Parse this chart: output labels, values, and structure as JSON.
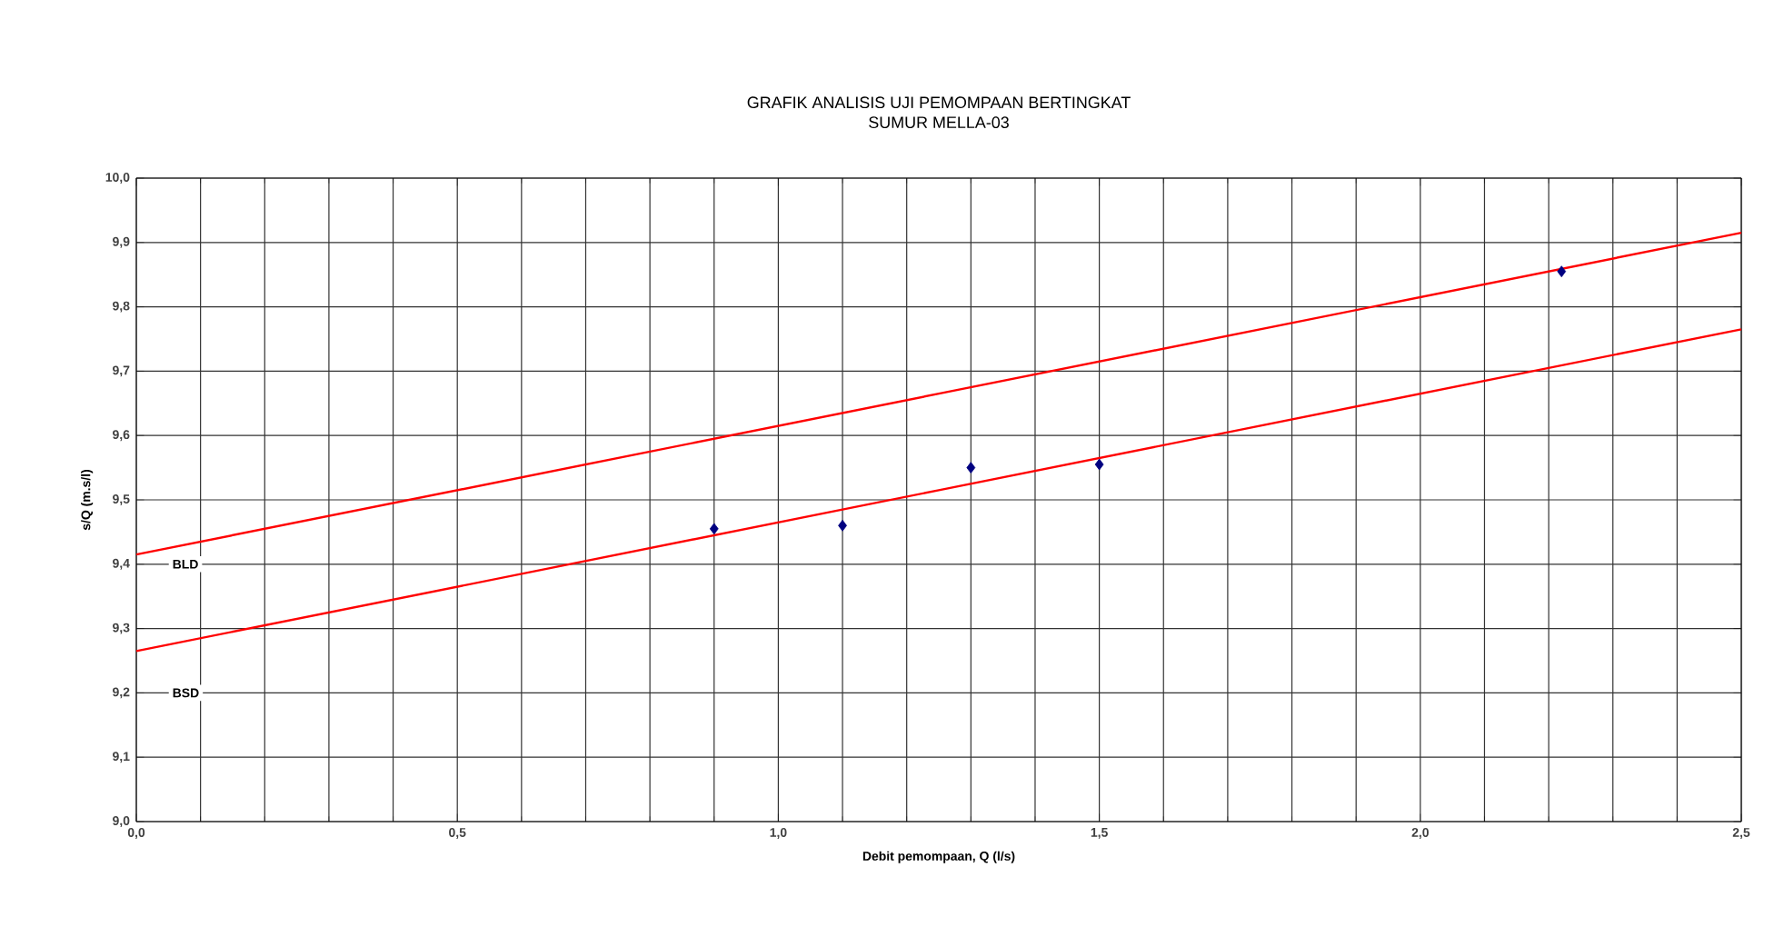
{
  "chart_data": {
    "type": "scatter",
    "title": "GRAFIK ANALISIS UJI PEMOMPAAN BERTINGKAT",
    "subtitle": "SUMUR MELLA-03",
    "xlabel": "Debit pemompaan, Q (l/s)",
    "ylabel": "s/Q (m.s/l)",
    "x": [
      0.9,
      1.1,
      1.3,
      1.5,
      2.22
    ],
    "series": [
      {
        "color": "#000080",
        "marker": "diamond",
        "values": [
          9.455,
          9.46,
          9.55,
          9.555,
          9.855
        ]
      },
      {
        "type": "line",
        "color": "#ff0000",
        "marker": "none",
        "x": [
          0,
          1.25,
          2.5
        ],
        "values": [
          9.415,
          9.665,
          9.915
        ]
      },
      {
        "type": "line",
        "color": "#ff0000",
        "marker": "none",
        "x": [
          0,
          1.25,
          2.5
        ],
        "values": [
          9.265,
          9.515,
          9.765
        ]
      }
    ],
    "xlim": [
      0,
      2.5
    ],
    "ylim": [
      9.0,
      10.0
    ],
    "xticks": [
      {
        "value": 0,
        "label": "0,0"
      },
      {
        "value": 0.5,
        "label": "0,5"
      },
      {
        "value": 1.0,
        "label": "1,0"
      },
      {
        "value": 1.5,
        "label": "1,5"
      },
      {
        "value": 2.0,
        "label": "2,0"
      },
      {
        "value": 2.5,
        "label": "2,5"
      }
    ],
    "yticks": [
      {
        "value": 9.0,
        "label": "9,0"
      },
      {
        "value": 9.1,
        "label": "9,1"
      },
      {
        "value": 9.2,
        "label": "9,2"
      },
      {
        "value": 9.3,
        "label": "9,3"
      },
      {
        "value": 9.4,
        "label": "9,4"
      },
      {
        "value": 9.5,
        "label": "9,5"
      },
      {
        "value": 9.6,
        "label": "9,6"
      },
      {
        "value": 9.7,
        "label": "9,7"
      },
      {
        "value": 9.8,
        "label": "9,8"
      },
      {
        "value": 9.9,
        "label": "9,9"
      },
      {
        "value": 10.0,
        "label": "10,0"
      }
    ],
    "annotations": [
      "BLD",
      "BSD"
    ],
    "grid": true
  }
}
